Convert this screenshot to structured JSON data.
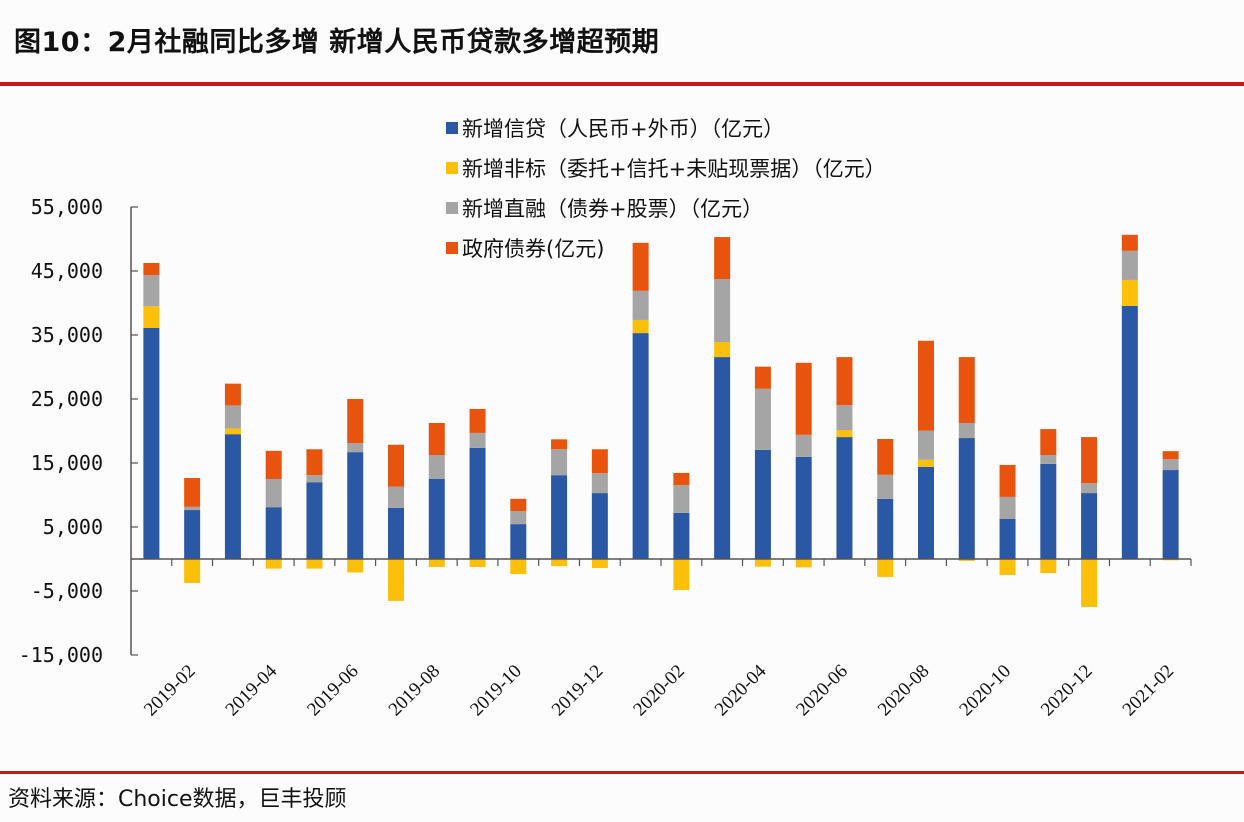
{
  "header": {
    "title": "图10：2月社融同比多增 新增人民币贷款多增超预期"
  },
  "footer": {
    "source": "资料来源：Choice数据，巨丰投顾"
  },
  "colors": {
    "rule": "#c8161d",
    "axis": "#555555"
  },
  "chart_data": {
    "type": "bar",
    "stacked": true,
    "title": "图10：2月社融同比多增 新增人民币贷款多增超预期",
    "xlabel": "",
    "ylabel": "",
    "ylim": [
      -15000,
      55000
    ],
    "yticks": [
      55000,
      45000,
      35000,
      25000,
      15000,
      5000,
      -5000,
      -15000
    ],
    "ytick_labels": [
      "55,000",
      "45,000",
      "35,000",
      "25,000",
      "15,000",
      "5,000",
      "-5,000",
      "-15,000"
    ],
    "grid": false,
    "legend_position": "top-center",
    "categories": [
      "2019-01",
      "2019-02",
      "2019-03",
      "2019-04",
      "2019-05",
      "2019-06",
      "2019-07",
      "2019-08",
      "2019-09",
      "2019-10",
      "2019-11",
      "2019-12",
      "2020-01",
      "2020-02",
      "2020-03",
      "2020-04",
      "2020-05",
      "2020-06",
      "2020-07",
      "2020-08",
      "2020-09",
      "2020-10",
      "2020-11",
      "2020-12",
      "2021-01",
      "2021-02"
    ],
    "xtick_labels": [
      "2019-02",
      "2019-04",
      "2019-06",
      "2019-08",
      "2019-10",
      "2019-12",
      "2020-02",
      "2020-04",
      "2020-06",
      "2020-08",
      "2020-10",
      "2020-12",
      "2021-02"
    ],
    "series": [
      {
        "name": "新增信贷（人民币+外币）（亿元）",
        "color": "#2b58a4",
        "values": [
          36100,
          7650,
          19500,
          8100,
          12000,
          16700,
          8000,
          12500,
          17350,
          5450,
          13100,
          10300,
          35300,
          7200,
          31550,
          17050,
          15950,
          19050,
          9400,
          14400,
          18900,
          6250,
          14850,
          10300,
          39550,
          13900
        ]
      },
      {
        "name": "新增非标（委托+信托+未贴现票据）（亿元）",
        "color": "#fcbf0a",
        "values": [
          3400,
          -3750,
          900,
          -1500,
          -1500,
          -2100,
          -6550,
          -1250,
          -1250,
          -2350,
          -1100,
          -1400,
          2050,
          -4850,
          2350,
          -1200,
          -1300,
          1100,
          -2800,
          1100,
          -300,
          -2500,
          -2200,
          -7500,
          4050,
          -200
        ]
      },
      {
        "name": "新增直融（债券+股票）（亿元）",
        "color": "#a5a5a5",
        "values": [
          4850,
          500,
          3600,
          4400,
          1100,
          1400,
          3300,
          3750,
          2350,
          2050,
          4050,
          3100,
          4550,
          4350,
          9850,
          9550,
          3450,
          3900,
          3750,
          4550,
          2350,
          3450,
          1400,
          1550,
          4550,
          1700
        ]
      },
      {
        "name": "政府债券(亿元)",
        "color": "#e8530e",
        "values": [
          1900,
          4500,
          3400,
          4400,
          4050,
          6900,
          6550,
          5000,
          3750,
          1900,
          1550,
          3750,
          7500,
          1900,
          6550,
          3450,
          11250,
          7500,
          5600,
          14050,
          10300,
          5000,
          4050,
          7200,
          2500,
          1250
        ]
      }
    ]
  }
}
